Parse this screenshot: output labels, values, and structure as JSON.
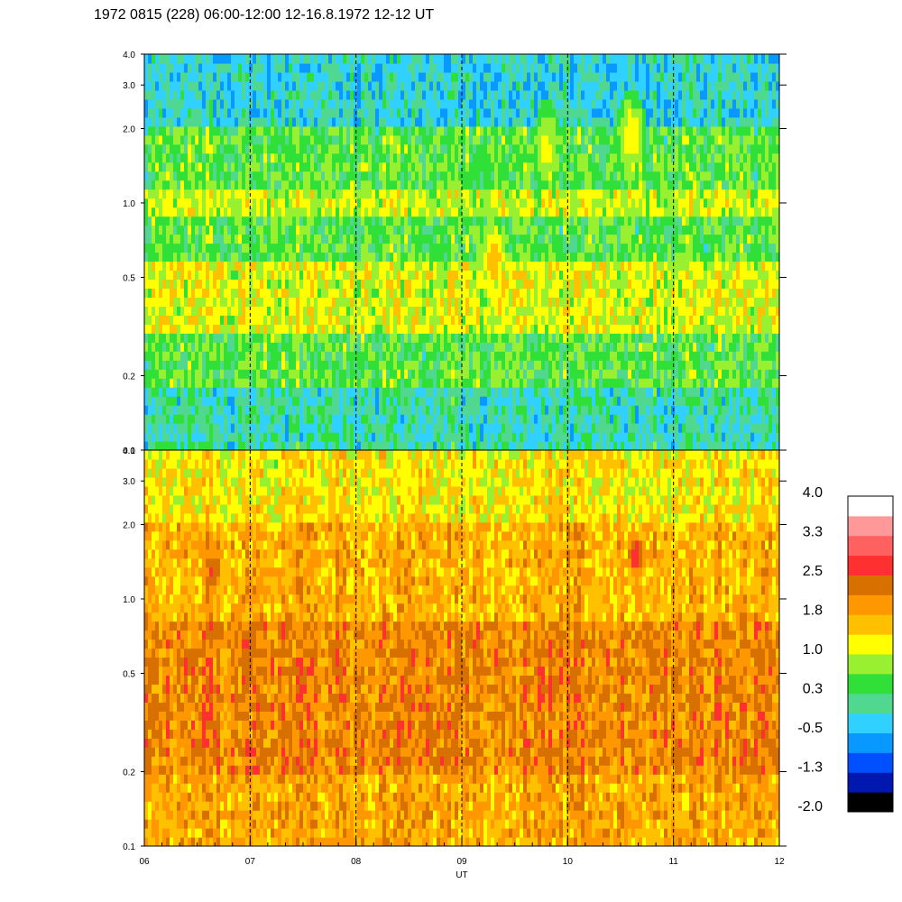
{
  "chart_data": {
    "type": "heatmap",
    "title": "1972 0815 (228) 06:00-12:00 12-16.8.1972  12-12 UT",
    "xlabel": "UT",
    "x_range": [
      6,
      12
    ],
    "x_ticks": [
      "06",
      "07",
      "08",
      "09",
      "10",
      "11",
      "12"
    ],
    "hour_markers": [
      7,
      8,
      9,
      10,
      11
    ],
    "y_scale": "log",
    "y_range": [
      0.1,
      4.0
    ],
    "y_ticks": [
      {
        "value": 0.1,
        "label": "0.1"
      },
      {
        "value": 0.2,
        "label": "0.2"
      },
      {
        "value": 0.5,
        "label": "0.5"
      },
      {
        "value": 1.0,
        "label": "1.0"
      },
      {
        "value": 2.0,
        "label": "2.0"
      },
      {
        "value": 3.0,
        "label": "3.0"
      },
      {
        "value": 4.0,
        "label": "4.0"
      }
    ],
    "colorbar": {
      "range": [
        -2.0,
        4.0
      ],
      "labels": [
        "4.0",
        "3.3",
        "2.5",
        "1.8",
        "1.0",
        "0.3",
        "-0.5",
        "-1.3",
        "-2.0"
      ],
      "colors": [
        "#000000",
        "#0018b0",
        "#0050ff",
        "#0898ff",
        "#30d0ff",
        "#50d890",
        "#30e038",
        "#98f030",
        "#ffff00",
        "#ffc000",
        "#ff9800",
        "#d87000",
        "#ff3030",
        "#ff6060",
        "#ff9898",
        "#ffffff"
      ]
    },
    "panels": [
      {
        "name": "upper",
        "freq_bands": [
          {
            "freq_min": 0.1,
            "freq_max": 0.18,
            "value": 0.0
          },
          {
            "freq_min": 0.18,
            "freq_max": 0.3,
            "value": 0.5
          },
          {
            "freq_min": 0.3,
            "freq_max": 0.6,
            "value": 1.1
          },
          {
            "freq_min": 0.6,
            "freq_max": 0.85,
            "value": 0.5
          },
          {
            "freq_min": 0.85,
            "freq_max": 1.1,
            "value": 1.0
          },
          {
            "freq_min": 1.1,
            "freq_max": 2.0,
            "value": 0.5
          },
          {
            "freq_min": 2.0,
            "freq_max": 4.0,
            "value": -0.2
          }
        ],
        "hot_spots": [
          {
            "t": 9.3,
            "freq": 0.6,
            "value": 1.7
          },
          {
            "t": 10.6,
            "freq": 1.9,
            "value": 1.4
          },
          {
            "t": 9.8,
            "freq": 1.7,
            "value": 1.2
          }
        ]
      },
      {
        "name": "lower",
        "freq_bands": [
          {
            "freq_min": 0.1,
            "freq_max": 0.2,
            "value": 1.8
          },
          {
            "freq_min": 0.2,
            "freq_max": 0.8,
            "value": 2.1
          },
          {
            "freq_min": 0.8,
            "freq_max": 2.0,
            "value": 1.7
          },
          {
            "freq_min": 2.0,
            "freq_max": 4.0,
            "value": 1.3
          }
        ],
        "hot_spots": [
          {
            "t": 10.65,
            "freq": 1.5,
            "value": 2.7
          },
          {
            "t": 6.65,
            "freq": 1.3,
            "value": 2.5
          },
          {
            "t": 9.0,
            "freq": 0.5,
            "value": 2.5
          },
          {
            "t": 11.65,
            "freq": 0.85,
            "value": 2.3
          },
          {
            "t": 6.1,
            "freq": 0.35,
            "value": 2.4
          }
        ]
      }
    ]
  }
}
